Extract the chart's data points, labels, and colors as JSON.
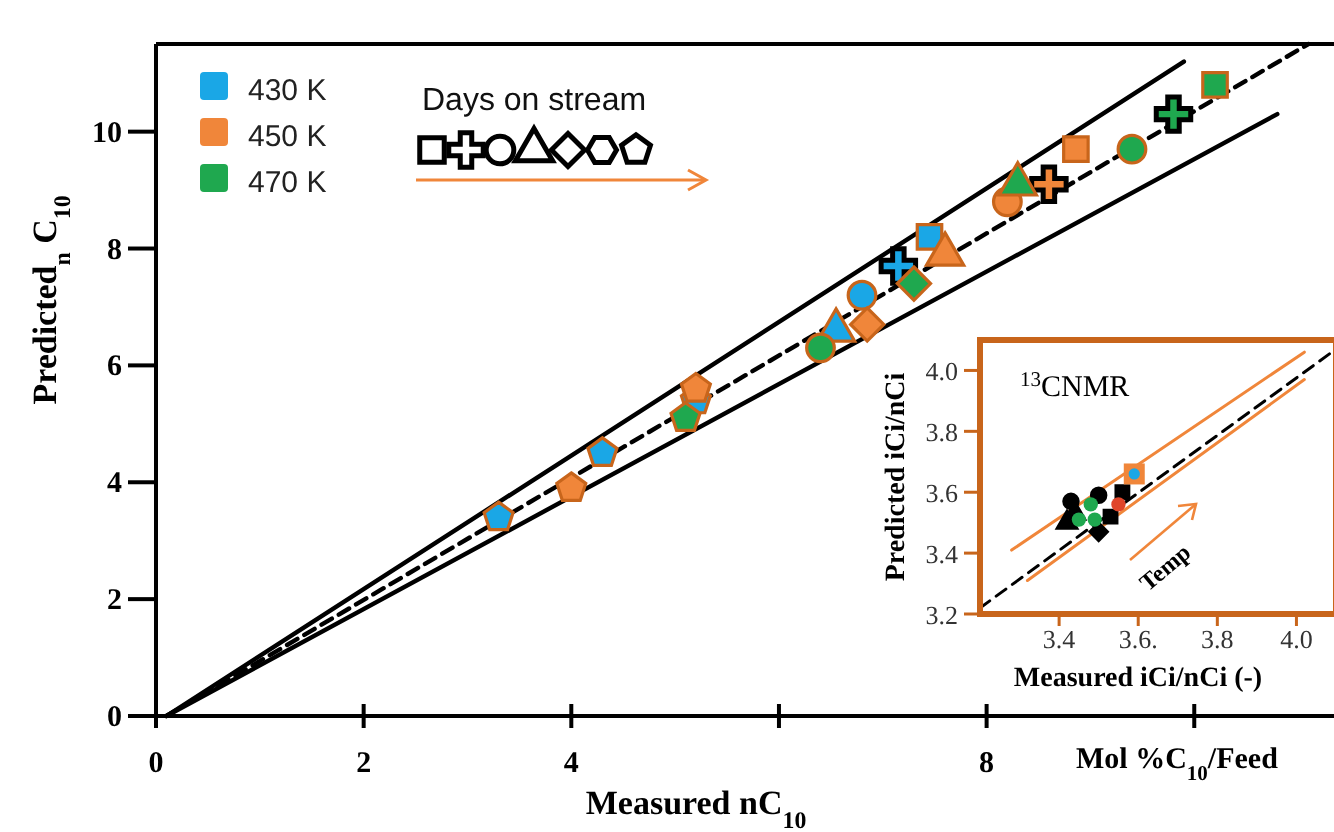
{
  "chart_data": [
    {
      "type": "scatter",
      "xlabel": "Measured nC$_{10}$",
      "ylabel": "Predicted$_{n}$ C$_{10}$",
      "annotations": [
        "Days on stream",
        "Mol %C$_{10}$/Feed"
      ],
      "xlim": [
        0,
        11.5
      ],
      "ylim": [
        0,
        11.5
      ],
      "xticks": [
        0,
        2,
        4,
        {
          "value": 6,
          "label": null
        },
        8,
        {
          "value": 10,
          "label": null
        }
      ],
      "yticks": [
        0,
        2,
        4,
        6,
        8,
        10
      ],
      "legend": "top left",
      "grid": false,
      "series": [
        {
          "type": "line",
          "color": "#000000",
          "line_style": "dashed",
          "x": [
            0.1,
            11.1
          ],
          "values": [
            0,
            11.5
          ]
        },
        {
          "type": "line",
          "color": "#000000",
          "line_style": "solid",
          "x": [
            0.1,
            9.9
          ],
          "values": [
            0,
            11.2
          ]
        },
        {
          "type": "line",
          "color": "#000000",
          "line_style": "solid",
          "x": [
            0.1,
            10.8
          ],
          "values": [
            0,
            10.3
          ]
        },
        {
          "name": "430 K",
          "color": "#1aa7e6",
          "x": [
            3.3,
            4.3,
            5.2,
            6.55,
            6.8,
            7.15,
            7.45
          ],
          "values": [
            3.4,
            4.5,
            5.4,
            6.6,
            7.2,
            7.7,
            8.2
          ],
          "marker": [
            "pentagon",
            "pentagon",
            "pentagon",
            "triangle",
            "circle",
            "cross",
            "square"
          ]
        },
        {
          "name": "450 K",
          "color": "#f0863a",
          "x": [
            4.0,
            5.2,
            6.85,
            7.6,
            8.2,
            8.6,
            8.86
          ],
          "values": [
            3.9,
            5.6,
            6.7,
            7.9,
            8.8,
            9.1,
            9.7
          ],
          "marker": [
            "pentagon",
            "pentagon",
            "diamond",
            "triangle",
            "circle",
            "cross",
            "square"
          ]
        },
        {
          "name": "470 K",
          "color": "#1fa84f",
          "x": [
            5.1,
            6.4,
            7.3,
            8.3,
            9.4,
            9.8,
            10.2
          ],
          "values": [
            5.1,
            6.3,
            7.4,
            9.1,
            9.7,
            10.3,
            10.8
          ],
          "marker": [
            "pentagon",
            "circle",
            "diamond",
            "triangle",
            "circle",
            "cross",
            "square"
          ]
        }
      ]
    },
    {
      "type": "scatter",
      "xlabel": "Measured iCi/nCi (-)",
      "ylabel": "Predicted iCi/nCi",
      "annotations": [
        "$^{13}$CNMR",
        "Temp"
      ],
      "xlim": [
        3.2,
        4.1
      ],
      "ylim": [
        3.2,
        4.1
      ],
      "xticks": [
        3.4,
        {
          "value": 3.6,
          "label": "3.6."
        },
        3.8,
        {
          "value": 4,
          "label": "4.0"
        }
      ],
      "yticks": [
        3.2,
        3.4,
        3.6,
        3.8,
        {
          "value": 4,
          "label": "4.0"
        }
      ],
      "grid": false,
      "series": [
        {
          "type": "line",
          "color": "#000000",
          "line_style": "dashed",
          "x": [
            3.2,
            4.1
          ],
          "values": [
            3.22,
            4.07
          ]
        },
        {
          "type": "line",
          "color": "#f0863a",
          "line_style": "solid",
          "x": [
            3.28,
            4.02
          ],
          "values": [
            3.41,
            4.06
          ]
        },
        {
          "type": "line",
          "color": "#f0863a",
          "line_style": "solid",
          "x": [
            3.32,
            4.02
          ],
          "values": [
            3.31,
            3.97
          ]
        },
        {
          "color": "#000000",
          "x": [
            3.42,
            3.43,
            3.5,
            3.53,
            3.56,
            3.5,
            3.44
          ],
          "values": [
            3.5,
            3.57,
            3.47,
            3.52,
            3.6,
            3.59,
            3.53
          ],
          "marker": [
            "triangle",
            "circle",
            "diamond",
            "square",
            "square",
            "circle",
            "triangle"
          ]
        },
        {
          "color": "#f0863a",
          "x": [
            3.59
          ],
          "values": [
            3.66
          ],
          "marker": [
            "square"
          ]
        },
        {
          "color": "#1fa84f",
          "x": [
            3.48,
            3.49,
            3.45
          ],
          "values": [
            3.56,
            3.51,
            3.51
          ],
          "marker": [
            "circle",
            "circle",
            "circle"
          ]
        },
        {
          "color": "#e0452a",
          "x": [
            3.55
          ],
          "values": [
            3.56
          ],
          "marker": [
            "circle"
          ]
        },
        {
          "color": "#1aa7e6",
          "x": [
            3.59
          ],
          "values": [
            3.66
          ],
          "marker": [
            "circle"
          ]
        }
      ]
    }
  ]
}
